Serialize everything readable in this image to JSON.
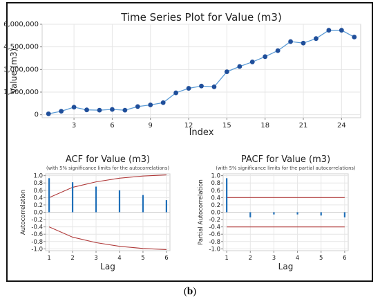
{
  "caption": {
    "open": "(",
    "letter": "b",
    "close": ")"
  },
  "chart_data": [
    {
      "id": "ts",
      "type": "line",
      "title": "Time Series Plot for Value (m3)",
      "subtitle": "",
      "xlabel": "Index",
      "ylabel": "Value (m3)",
      "xlim": [
        0.5,
        25.5
      ],
      "ylim": [
        -200000,
        6000000
      ],
      "xticks": [
        3,
        6,
        9,
        12,
        15,
        18,
        21,
        24
      ],
      "yticks": [
        0,
        1500000,
        3000000,
        4500000,
        6000000
      ],
      "ytick_labels": [
        "0",
        "1,500,000",
        "3,000,000",
        "4,500,000",
        "6,000,000"
      ],
      "grid": true,
      "series_color": "#1f4e9a",
      "line_color": "#5b9bd5",
      "x": [
        1,
        2,
        3,
        4,
        5,
        6,
        7,
        8,
        9,
        10,
        11,
        12,
        13,
        14,
        15,
        16,
        17,
        18,
        19,
        20,
        21,
        22,
        23,
        24,
        25
      ],
      "values": [
        60000,
        230000,
        500000,
        320000,
        300000,
        350000,
        300000,
        540000,
        650000,
        800000,
        1450000,
        1750000,
        1900000,
        1850000,
        2850000,
        3200000,
        3500000,
        3850000,
        4250000,
        4850000,
        4750000,
        5050000,
        5600000,
        5600000,
        5150000
      ]
    },
    {
      "id": "acf",
      "type": "bar",
      "title": "ACF for Value (m3)",
      "subtitle": "(with 5% significance limits for the autocorrelations)",
      "xlabel": "Lag",
      "ylabel": "Autocorrelation",
      "xlim": [
        0.85,
        6.15
      ],
      "ylim": [
        -1.05,
        1.05
      ],
      "xticks": [
        1,
        2,
        3,
        4,
        5,
        6
      ],
      "yticks": [
        1.0,
        0.8,
        0.6,
        0.4,
        0.2,
        0.0,
        -0.2,
        -0.4,
        -0.6,
        -0.8,
        -1.0
      ],
      "ytick_labels": [
        "1.0",
        "0.8",
        "0.6",
        "0.4",
        "0.2",
        "0.0",
        "-0.2",
        "-0.4",
        "-0.6",
        "-0.8",
        "-1.0"
      ],
      "grid": true,
      "bar_color": "#1f6fb8",
      "limit_color": "#b03a3a",
      "lags": [
        1,
        2,
        3,
        4,
        5,
        6
      ],
      "values": [
        0.93,
        0.82,
        0.7,
        0.6,
        0.47,
        0.33
      ],
      "limits_x": [
        1,
        2,
        3,
        4,
        5,
        6
      ],
      "limits_upper": [
        0.4,
        0.68,
        0.83,
        0.93,
        0.99,
        1.02
      ]
    },
    {
      "id": "pacf",
      "type": "bar",
      "title": "PACF for Value (m3)",
      "subtitle": "(with 5% significance limits for the partial autocorrelations)",
      "xlabel": "Lag",
      "ylabel": "Partial Autocorrelation",
      "xlim": [
        0.85,
        6.15
      ],
      "ylim": [
        -1.05,
        1.05
      ],
      "xticks": [
        1,
        2,
        3,
        4,
        5,
        6
      ],
      "yticks": [
        1.0,
        0.8,
        0.6,
        0.4,
        0.2,
        0.0,
        -0.2,
        -0.4,
        -0.6,
        -0.8,
        -1.0
      ],
      "ytick_labels": [
        "1.0",
        "0.8",
        "0.6",
        "0.4",
        "0.2",
        "0.0",
        "-0.2",
        "-0.4",
        "-0.6",
        "-0.8",
        "-1.0"
      ],
      "grid": true,
      "bar_color": "#1f6fb8",
      "limit_color": "#b03a3a",
      "lags": [
        1,
        2,
        3,
        4,
        5,
        6
      ],
      "values": [
        0.93,
        -0.14,
        -0.06,
        -0.06,
        -0.09,
        -0.14
      ],
      "limits_x": [
        1,
        6
      ],
      "limits_upper": [
        0.4,
        0.4
      ]
    }
  ]
}
